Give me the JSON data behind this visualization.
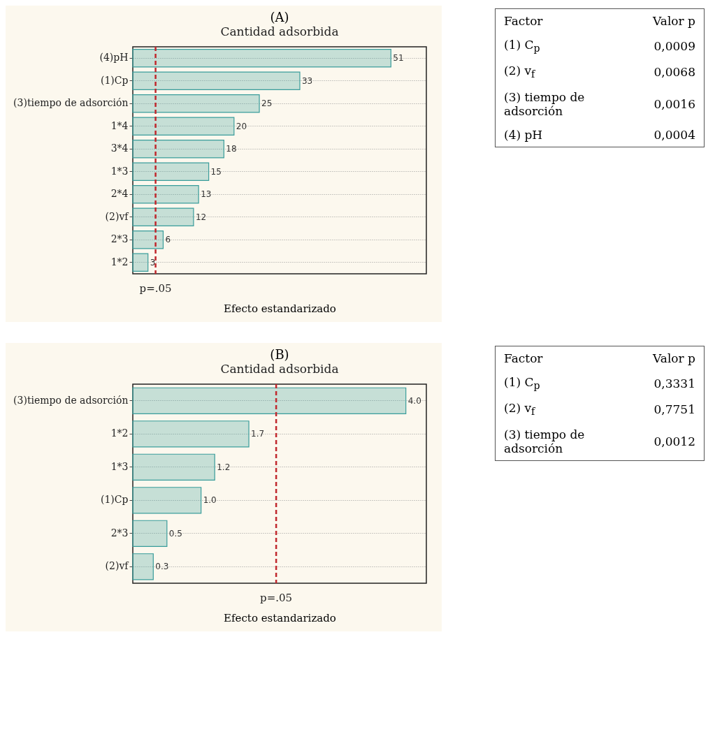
{
  "chart_data": [
    {
      "type": "bar",
      "orientation": "horizontal",
      "title": "(A)",
      "subtitle": "Cantidad adsorbida",
      "xlabel": "Efecto estandarizado",
      "categories": [
        "(4)pH",
        "(1)Cp",
        "(3)tiempo de adsorción",
        "1*4",
        "3*4",
        "1*3",
        "2*4",
        "(2)vf",
        "2*3",
        "1*2"
      ],
      "values": [
        51,
        33,
        25,
        20,
        18,
        15,
        13,
        12,
        6,
        3
      ],
      "color": "#3a9d9b",
      "xlim": [
        0,
        58
      ],
      "data_labels": true,
      "grid": "y",
      "tick_labels": "y",
      "ref_lines": [
        {
          "axis": "x",
          "value": 4.5,
          "label": "p=.05",
          "color": "#c0282d",
          "line_style": "dashed"
        }
      ]
    },
    {
      "type": "other",
      "annotations": [
        "Factor",
        "Valor p",
        "(1) C$_{p}$",
        "0,0009",
        "(2) v$_{f}$",
        "0,0068",
        "(3) tiempo de adsorción",
        "0,0016",
        "(4) pH",
        "0,0004"
      ]
    },
    {
      "type": "bar",
      "orientation": "horizontal",
      "title": "(B)",
      "subtitle": "Cantidad adsorbida",
      "xlabel": "Efecto estandarizado",
      "categories": [
        "(3)tiempo de adsorción",
        "1*2",
        "1*3",
        "(1)Cp",
        "2*3",
        "(2)vf"
      ],
      "values": [
        4.0,
        1.7,
        1.2,
        1.0,
        0.5,
        0.3
      ],
      "value_labels": [
        "4.0",
        "1.7",
        "1.2",
        "1.0",
        "0.5",
        "0.3"
      ],
      "color": "#3a9d9b",
      "xlim": [
        0,
        4.3
      ],
      "grid": "y",
      "tick_labels": "y",
      "ref_lines": [
        {
          "axis": "x",
          "value": 2.1,
          "label": "p=.05",
          "color": "#c0282d",
          "line_style": "dashed"
        }
      ]
    },
    {
      "type": "other",
      "annotations": [
        "Factor",
        "Valor p",
        "(1) C$_{p}$",
        "0,3331",
        "(2) v$_{f}$",
        "0,7751",
        "(3) tiempo de adsorción",
        "0,0012"
      ]
    }
  ]
}
